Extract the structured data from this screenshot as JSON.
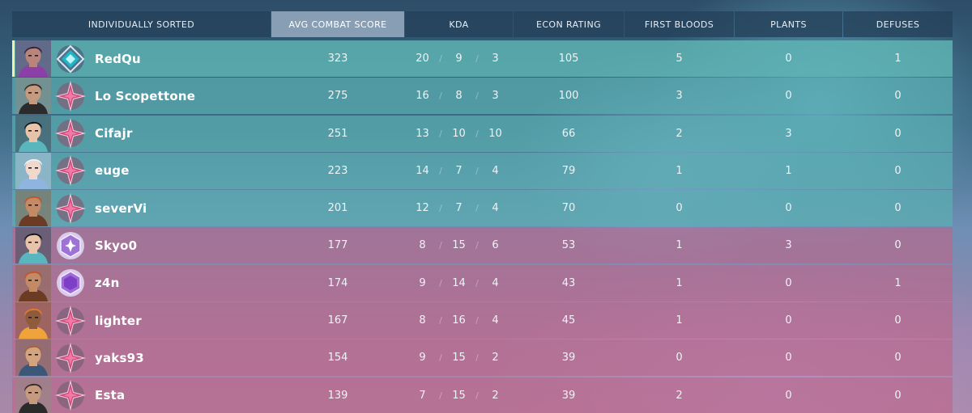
{
  "header": {
    "columns": [
      "INDIVIDUALLY SORTED",
      "AVG COMBAT SCORE",
      "KDA",
      "ECON RATING",
      "FIRST BLOODS",
      "PLANTS",
      "DEFUSES"
    ],
    "active_column": "AVG COMBAT SCORE"
  },
  "colors": {
    "team_a": "#5aafb2",
    "team_b": "#be6487",
    "highlight_marker": "#f2f0a4"
  },
  "players": [
    {
      "name": "RedQu",
      "team": "a",
      "highlight": true,
      "agent_icon": "agent-portrait-reyna-icon",
      "rank_icon": "diamond-rank-icon",
      "acs": "323",
      "kills": "20",
      "deaths": "9",
      "assists": "3",
      "econ": "105",
      "first_bloods": "5",
      "plants": "0",
      "defuses": "1"
    },
    {
      "name": "Lo Scopettone",
      "team": "a",
      "highlight": false,
      "agent_icon": "agent-portrait-chamber-icon",
      "rank_icon": "unranked-star-icon",
      "acs": "275",
      "kills": "16",
      "deaths": "8",
      "assists": "3",
      "econ": "100",
      "first_bloods": "3",
      "plants": "0",
      "defuses": "0"
    },
    {
      "name": "Cifajr",
      "team": "a",
      "highlight": false,
      "agent_icon": "agent-portrait-sage-icon",
      "rank_icon": "unranked-star-icon",
      "acs": "251",
      "kills": "13",
      "deaths": "10",
      "assists": "10",
      "econ": "66",
      "first_bloods": "2",
      "plants": "3",
      "defuses": "0"
    },
    {
      "name": "euge",
      "team": "a",
      "highlight": false,
      "agent_icon": "agent-portrait-jett-icon",
      "rank_icon": "unranked-star-icon",
      "acs": "223",
      "kills": "14",
      "deaths": "7",
      "assists": "4",
      "econ": "79",
      "first_bloods": "1",
      "plants": "1",
      "defuses": "0"
    },
    {
      "name": "severVi",
      "team": "a",
      "highlight": false,
      "agent_icon": "agent-portrait-brimstone-icon",
      "rank_icon": "unranked-star-icon",
      "acs": "201",
      "kills": "12",
      "deaths": "7",
      "assists": "4",
      "econ": "70",
      "first_bloods": "0",
      "plants": "0",
      "defuses": "0"
    },
    {
      "name": "Skyo0",
      "team": "b",
      "highlight": false,
      "agent_icon": "agent-portrait-sage-icon",
      "rank_icon": "ascendant-rank-icon",
      "acs": "177",
      "kills": "8",
      "deaths": "15",
      "assists": "6",
      "econ": "53",
      "first_bloods": "1",
      "plants": "3",
      "defuses": "0"
    },
    {
      "name": "z4n",
      "team": "b",
      "highlight": false,
      "agent_icon": "agent-portrait-brimstone-icon",
      "rank_icon": "immortal-rank-icon",
      "acs": "174",
      "kills": "9",
      "deaths": "14",
      "assists": "4",
      "econ": "43",
      "first_bloods": "1",
      "plants": "0",
      "defuses": "1"
    },
    {
      "name": "lighter",
      "team": "b",
      "highlight": false,
      "agent_icon": "agent-portrait-raze-icon",
      "rank_icon": "unranked-star-icon",
      "acs": "167",
      "kills": "8",
      "deaths": "16",
      "assists": "4",
      "econ": "45",
      "first_bloods": "1",
      "plants": "0",
      "defuses": "0"
    },
    {
      "name": "yaks93",
      "team": "b",
      "highlight": false,
      "agent_icon": "agent-portrait-sova-icon",
      "rank_icon": "unranked-star-icon",
      "acs": "154",
      "kills": "9",
      "deaths": "15",
      "assists": "2",
      "econ": "39",
      "first_bloods": "0",
      "plants": "0",
      "defuses": "0"
    },
    {
      "name": "Esta",
      "team": "b",
      "highlight": false,
      "agent_icon": "agent-portrait-chamber-icon",
      "rank_icon": "unranked-star-icon",
      "acs": "139",
      "kills": "7",
      "deaths": "15",
      "assists": "2",
      "econ": "39",
      "first_bloods": "2",
      "plants": "0",
      "defuses": "0"
    }
  ]
}
